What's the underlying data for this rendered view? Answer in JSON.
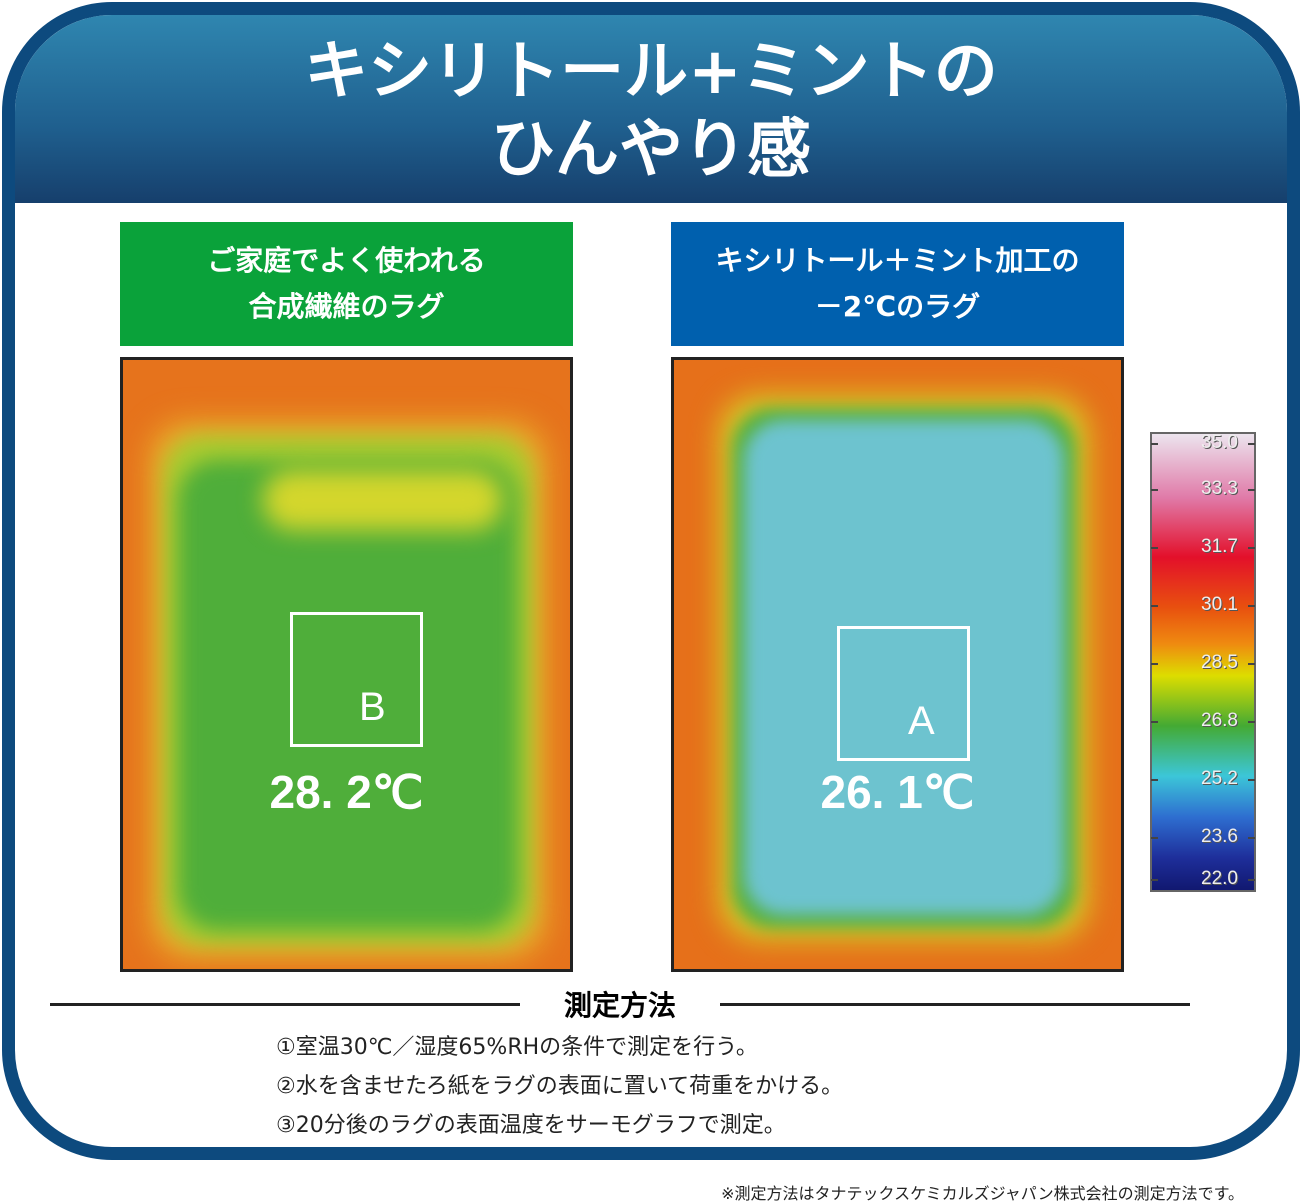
{
  "title": {
    "line1": "キシリトール+ミントの",
    "line2": "ひんやり感"
  },
  "left": {
    "label_line1": "ご家庭でよく使われる",
    "label_line2": "合成繊維のラグ",
    "color": "#0aa23a",
    "marker": "B",
    "temperature": "28. 2℃"
  },
  "right": {
    "label_line1": "キシリトール＋ミント加工の",
    "label_line2": "－2℃のラグ",
    "color": "#0060ae",
    "marker": "A",
    "temperature": "26. 1℃"
  },
  "color_scale": {
    "ticks": [
      "35.0",
      "33.3",
      "31.7",
      "30.1",
      "28.5",
      "26.8",
      "25.2",
      "23.6",
      "22.0"
    ]
  },
  "method": {
    "title": "測定方法",
    "steps": [
      "①室温30℃／湿度65%RHの条件で測定を行う。",
      "②水を含ませたろ紙をラグの表面に置いて荷重をかける。",
      "③20分後のラグの表面温度をサーモグラフで測定。"
    ]
  },
  "note": "※測定方法はタナテックスケミカルズジャパン株式会社の測定方法です。"
}
